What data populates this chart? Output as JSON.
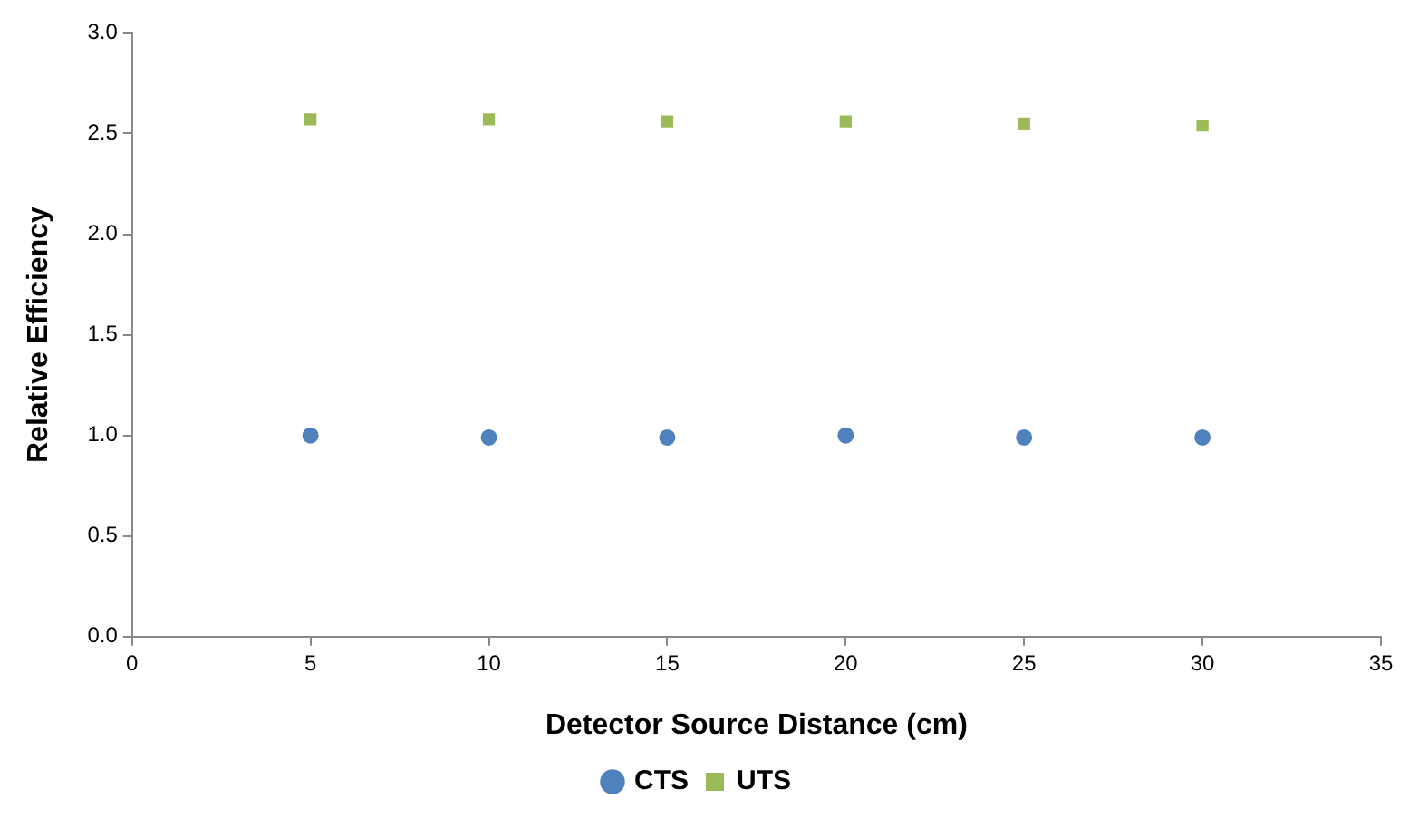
{
  "chart_data": {
    "type": "scatter",
    "xlabel": "Detector Source Distance (cm)",
    "ylabel": "Relative Efficiency",
    "x": [
      5,
      10,
      15,
      20,
      25,
      30
    ],
    "series": [
      {
        "name": "CTS",
        "color": "#4f81bd",
        "marker": "circle",
        "values": [
          1.0,
          0.99,
          0.99,
          1.0,
          0.99,
          0.99
        ]
      },
      {
        "name": "UTS",
        "color": "#9bbb59",
        "marker": "square",
        "values": [
          2.57,
          2.57,
          2.56,
          2.56,
          2.55,
          2.54
        ]
      }
    ],
    "xlim": [
      0,
      35
    ],
    "xticks": [
      0,
      5,
      10,
      15,
      20,
      25,
      30,
      35
    ],
    "ylim": [
      0,
      3
    ],
    "yticks": [
      {
        "value": 0,
        "label": "0.0"
      },
      0.5,
      {
        "value": 1,
        "label": "1.0"
      },
      1.5,
      {
        "value": 2,
        "label": "2.0"
      },
      2.5,
      {
        "value": 3,
        "label": "3.0"
      }
    ],
    "grid": false,
    "legend": "bottom"
  }
}
